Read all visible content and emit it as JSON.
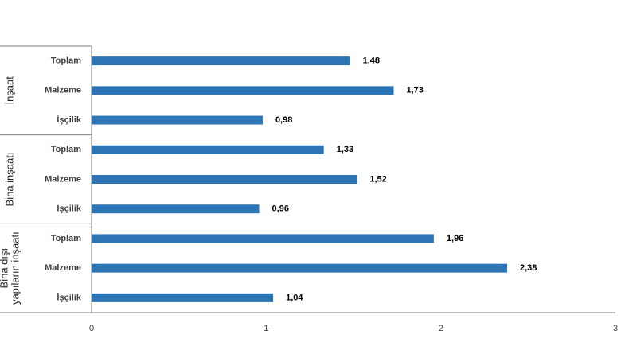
{
  "chart_data": {
    "type": "bar",
    "orientation": "horizontal",
    "groups": [
      {
        "label": "İnşaat",
        "categories": [
          "Toplam",
          "Malzeme",
          "İşçilik"
        ],
        "values": [
          1.48,
          1.73,
          0.98
        ],
        "value_labels": [
          "1,48",
          "1,73",
          "0,98"
        ]
      },
      {
        "label": "Bina inşaatı",
        "categories": [
          "Toplam",
          "Malzeme",
          "İşçilik"
        ],
        "values": [
          1.33,
          1.52,
          0.96
        ],
        "value_labels": [
          "1,33",
          "1,52",
          "0,96"
        ]
      },
      {
        "label_lines": [
          "Bina dışı",
          "yapıların inşaatı"
        ],
        "categories": [
          "Toplam",
          "Malzeme",
          "İşçilik"
        ],
        "values": [
          1.96,
          2.38,
          1.04
        ],
        "value_labels": [
          "1,96",
          "2,38",
          "1,04"
        ]
      }
    ],
    "xlim": [
      0,
      3
    ],
    "xticks": [
      0,
      1,
      2,
      3
    ],
    "xtick_labels": [
      "0",
      "1",
      "2",
      "3"
    ],
    "bar_color": "#2E75B6",
    "grid": false,
    "legend": false
  }
}
